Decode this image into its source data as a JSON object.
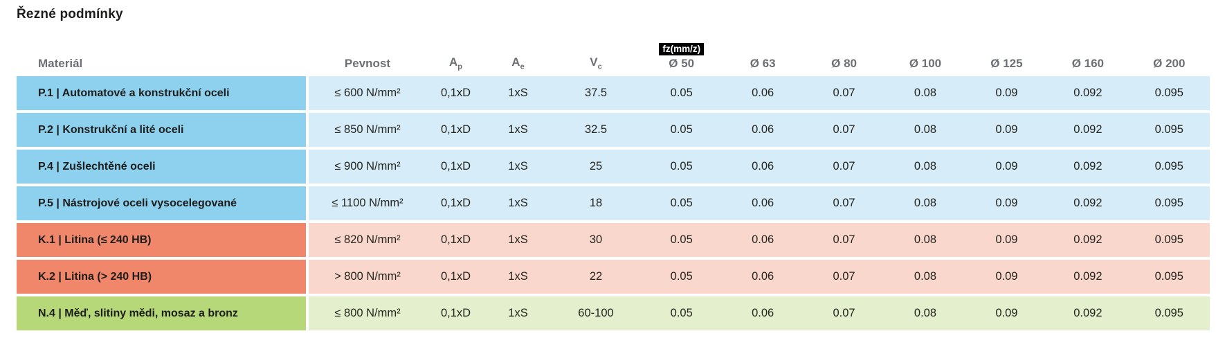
{
  "page_title": "Řezné podmínky",
  "colors": {
    "blue_dark": "#8dd1ef",
    "blue_light": "#d6ecf8",
    "orange_dark": "#f0876a",
    "orange_light": "#f9d7cc",
    "green_dark": "#b7d878",
    "green_light": "#e4efcd",
    "badge_bg": "#000000",
    "badge_text": "#ffffff",
    "header_text": "#6c7074",
    "cell_text": "#25251f"
  },
  "table": {
    "headers": {
      "material": "Materiál",
      "pevnost": "Pevnost",
      "ap": {
        "base": "A",
        "sub": "p"
      },
      "ae": {
        "base": "A",
        "sub": "e"
      },
      "vc": {
        "base": "V",
        "sub": "c"
      },
      "fz_badge": "fz(mm/z)",
      "diameters": [
        "Ø 50",
        "Ø 63",
        "Ø 80",
        "Ø 100",
        "Ø 125",
        "Ø 160",
        "Ø 200"
      ]
    },
    "rows": [
      {
        "theme": "blue",
        "material": "P.1 | Automatové a konstrukční oceli",
        "pevnost": "≤ 600 N/mm²",
        "ap": "0,1xD",
        "ae": "1xS",
        "vc": "37.5",
        "fz": [
          "0.05",
          "0.06",
          "0.07",
          "0.08",
          "0.09",
          "0.092",
          "0.095"
        ]
      },
      {
        "theme": "blue",
        "material": "P.2 | Konstrukční a lité oceli",
        "pevnost": "≤ 850 N/mm²",
        "ap": "0,1xD",
        "ae": "1xS",
        "vc": "32.5",
        "fz": [
          "0.05",
          "0.06",
          "0.07",
          "0.08",
          "0.09",
          "0.092",
          "0.095"
        ]
      },
      {
        "theme": "blue",
        "material": "P.4 | Zušlechtěné oceli",
        "pevnost": "≤ 900 N/mm²",
        "ap": "0,1xD",
        "ae": "1xS",
        "vc": "25",
        "fz": [
          "0.05",
          "0.06",
          "0.07",
          "0.08",
          "0.09",
          "0.092",
          "0.095"
        ]
      },
      {
        "theme": "blue",
        "material": "P.5 | Nástrojové oceli vysocelegované",
        "pevnost": "≤ 1100 N/mm²",
        "ap": "0,1xD",
        "ae": "1xS",
        "vc": "18",
        "fz": [
          "0.05",
          "0.06",
          "0.07",
          "0.08",
          "0.09",
          "0.092",
          "0.095"
        ]
      },
      {
        "theme": "orange",
        "material": "K.1 | Litina (≤ 240 HB)",
        "pevnost": "≤ 820 N/mm²",
        "ap": "0,1xD",
        "ae": "1xS",
        "vc": "30",
        "fz": [
          "0.05",
          "0.06",
          "0.07",
          "0.08",
          "0.09",
          "0.092",
          "0.095"
        ]
      },
      {
        "theme": "orange",
        "material": "K.2 | Litina (> 240 HB)",
        "pevnost": "> 800 N/mm²",
        "ap": "0,1xD",
        "ae": "1xS",
        "vc": "22",
        "fz": [
          "0.05",
          "0.06",
          "0.07",
          "0.08",
          "0.09",
          "0.092",
          "0.095"
        ]
      },
      {
        "theme": "green",
        "material": "N.4 | Měď, slitiny mědi, mosaz a bronz",
        "pevnost": "≤ 800 N/mm²",
        "ap": "0,1xD",
        "ae": "1xS",
        "vc": "60-100",
        "fz": [
          "0.05",
          "0.06",
          "0.07",
          "0.08",
          "0.09",
          "0.092",
          "0.095"
        ]
      }
    ]
  }
}
